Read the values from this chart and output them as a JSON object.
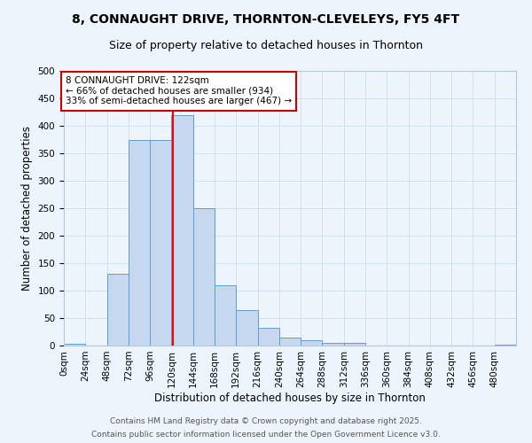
{
  "title": "8, CONNAUGHT DRIVE, THORNTON-CLEVELEYS, FY5 4FT",
  "subtitle": "Size of property relative to detached houses in Thornton",
  "xlabel": "Distribution of detached houses by size in Thornton",
  "ylabel": "Number of detached properties",
  "bin_labels": [
    "0sqm",
    "24sqm",
    "48sqm",
    "72sqm",
    "96sqm",
    "120sqm",
    "144sqm",
    "168sqm",
    "192sqm",
    "216sqm",
    "240sqm",
    "264sqm",
    "288sqm",
    "312sqm",
    "336sqm",
    "360sqm",
    "384sqm",
    "408sqm",
    "432sqm",
    "456sqm",
    "480sqm"
  ],
  "bar_heights": [
    3,
    0,
    130,
    375,
    375,
    420,
    250,
    110,
    65,
    33,
    15,
    10,
    5,
    5,
    0,
    0,
    0,
    0,
    0,
    0,
    2
  ],
  "bin_width": 24,
  "bar_color": "#c5d8f0",
  "bar_edge_color": "#5a9fd4",
  "grid_color": "#d0e0f0",
  "background_color": "#eef4fc",
  "red_line_x": 122,
  "annotation_title": "8 CONNAUGHT DRIVE: 122sqm",
  "annotation_line1": "← 66% of detached houses are smaller (934)",
  "annotation_line2": "33% of semi-detached houses are larger (467) →",
  "annotation_box_color": "#ffffff",
  "annotation_box_edge": "#cc0000",
  "footer_line1": "Contains HM Land Registry data © Crown copyright and database right 2025.",
  "footer_line2": "Contains public sector information licensed under the Open Government Licence v3.0.",
  "ylim": [
    0,
    500
  ],
  "yticks": [
    0,
    50,
    100,
    150,
    200,
    250,
    300,
    350,
    400,
    450,
    500
  ],
  "title_fontsize": 10,
  "subtitle_fontsize": 9,
  "axis_label_fontsize": 8.5,
  "tick_fontsize": 7.5,
  "footer_fontsize": 6.5,
  "annotation_fontsize": 7.5
}
